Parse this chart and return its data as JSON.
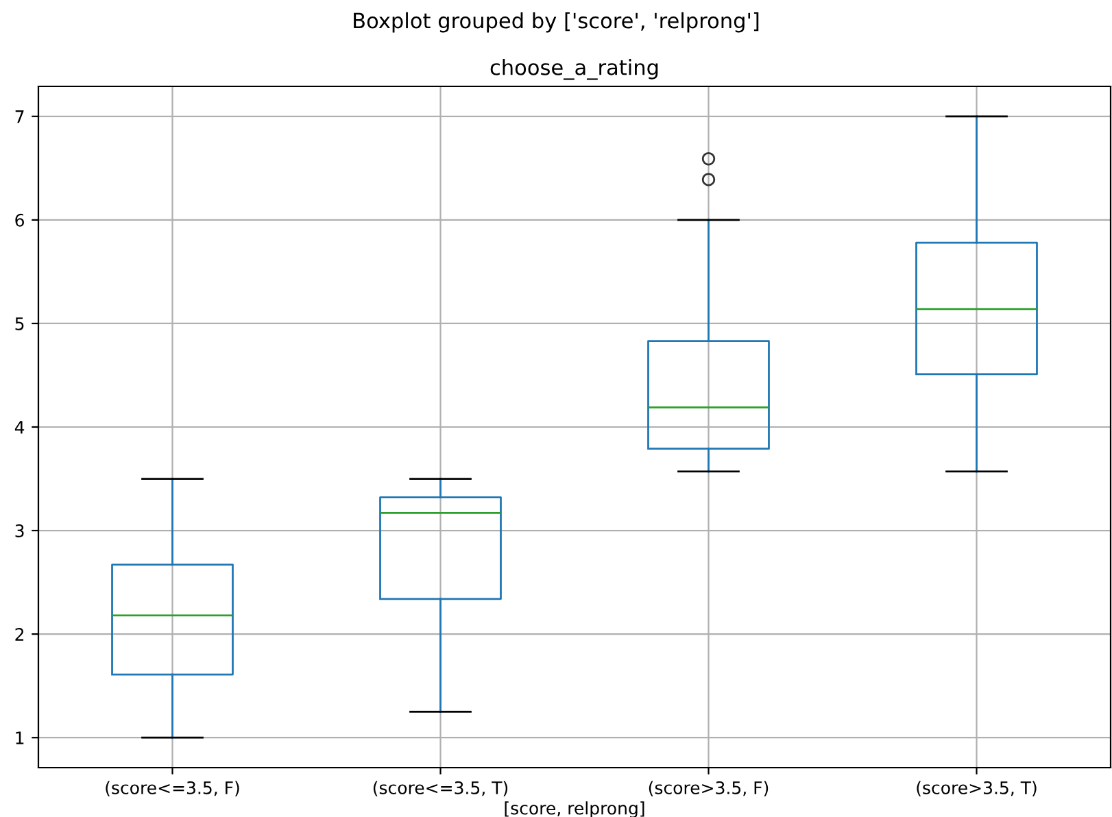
{
  "chart_data": {
    "type": "box",
    "title": "Boxplot grouped by ['score', 'relprong']",
    "subtitle": "choose_a_rating",
    "xlabel": "[score, relprong]",
    "categories": [
      "(score<=3.5, F)",
      "(score<=3.5, T)",
      "(score>3.5, F)",
      "(score>3.5, T)"
    ],
    "boxes": [
      {
        "low": 1.0,
        "q1": 1.61,
        "median": 2.18,
        "q3": 2.67,
        "high": 3.5
      },
      {
        "low": 1.25,
        "q1": 2.34,
        "median": 3.17,
        "q3": 3.32,
        "high": 3.5
      },
      {
        "low": 3.57,
        "q1": 3.79,
        "median": 4.19,
        "q3": 4.83,
        "high": 6.0,
        "outliers": [
          6.39,
          6.59
        ]
      },
      {
        "low": 3.57,
        "q1": 4.51,
        "median": 5.14,
        "q3": 5.78,
        "high": 7.0
      }
    ],
    "color": "#1f77b4",
    "ylim": [
      0.71,
      7.29
    ],
    "yticks": [
      1,
      2,
      3,
      4,
      5,
      6,
      7
    ],
    "grid": true
  }
}
